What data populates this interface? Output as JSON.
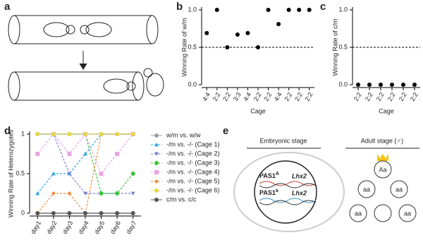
{
  "panel_labels": [
    "a",
    "b",
    "c",
    "d",
    "e"
  ],
  "chart_data": [
    {
      "type": "dot",
      "y_label": "Winning Rate of w/m",
      "x_label": "Cage",
      "categories": [
        "4:4",
        "2:2",
        "2:2",
        "3:3",
        "4:4",
        "2:2",
        "2:2",
        "4:4",
        "2:2",
        "2:2",
        "2:2"
      ],
      "values": [
        0.69,
        1.0,
        0.5,
        0.67,
        0.69,
        0.5,
        1.0,
        0.81,
        1.0,
        1.0,
        1.0
      ],
      "color": "#000000",
      "ylim": [
        0,
        1.0
      ],
      "yticks": [
        {
          "value": 0,
          "label": "0.0"
        },
        {
          "value": 0.5,
          "label": "0.5"
        },
        {
          "value": 1.0,
          "label": "1.0"
        }
      ],
      "hline": 0.5
    },
    {
      "type": "dot",
      "y_label": "Winning Rate of c/m",
      "x_label": "Cage",
      "categories": [
        "2:2",
        "2:2",
        "2:2",
        "2:2",
        "2:2",
        "2:2"
      ],
      "values": [
        0,
        0,
        0,
        0,
        0,
        0
      ],
      "color": "#000000",
      "ylim": [
        0,
        1.0
      ],
      "yticks": [
        {
          "value": 0,
          "label": "0.0"
        },
        {
          "value": 0.5,
          "label": "0.5"
        },
        {
          "value": 1.0,
          "label": "1.0"
        }
      ],
      "hline": 0.5
    },
    {
      "type": "line",
      "y_label": "Winning Rate of Heterozygotes",
      "categories": [
        "day1",
        "day2",
        "day3",
        "day4",
        "day5",
        "day6",
        "day7"
      ],
      "ylim": [
        0,
        1
      ],
      "yticks": [
        0,
        0.5,
        1
      ],
      "legend": "right",
      "series": [
        {
          "name": "w/m vs. w/w",
          "color": "#9e9e9e",
          "marker": "circle",
          "dash": false,
          "values": [
            1,
            1,
            1,
            1,
            1,
            1,
            1
          ]
        },
        {
          "name": "-/m vs. -/- (Cage 1)",
          "color": "#29a8e0",
          "marker": "triangle",
          "dash": true,
          "values": [
            0.25,
            0.5,
            0.5,
            0.75,
            1,
            1,
            1
          ]
        },
        {
          "name": "-/m vs. -/- (Cage 2)",
          "color": "#7b7fd6",
          "marker": "triangle-down",
          "dash": true,
          "values": [
            1,
            1,
            0.5,
            0.25,
            0.25,
            0.25,
            0.25
          ]
        },
        {
          "name": "-/m vs. -/- (Cage 3)",
          "color": "#3cc43c",
          "marker": "circle",
          "dash": true,
          "values": [
            1,
            1,
            1,
            1,
            0.25,
            0.25,
            0.5
          ]
        },
        {
          "name": "-/m vs. -/- (Cage 4)",
          "color": "#e9a3e6",
          "marker": "square",
          "dash": true,
          "values": [
            0.75,
            1,
            0.75,
            1,
            0.5,
            0.75,
            1
          ]
        },
        {
          "name": "-/m vs. -/- (Cage 5)",
          "color": "#ef8a3a",
          "marker": "diamond",
          "dash": true,
          "values": [
            0,
            0.25,
            0.25,
            0,
            1,
            1,
            1
          ]
        },
        {
          "name": "-/m vs. -/- (Cage 6)",
          "color": "#e8d84a",
          "marker": "circle",
          "dash": true,
          "values": [
            1,
            1,
            1,
            1,
            1,
            1,
            1
          ]
        },
        {
          "name": "c/m vs. c/c",
          "color": "#555555",
          "marker": "circle",
          "dash": false,
          "values": [
            0,
            0,
            0,
            0,
            0,
            0,
            0
          ]
        }
      ]
    }
  ],
  "diagram_e": {
    "left_title": "Embryonic stage",
    "right_title": "Adult stage (♂)",
    "allele_upper": {
      "gene": "PAS1",
      "allele": "A",
      "target": "Lhx2"
    },
    "allele_lower": {
      "gene": "PAS1",
      "allele": "a",
      "target": "Lhx2"
    },
    "adult_mice": [
      "Aa",
      "aa",
      "aa",
      "aa",
      "aa"
    ]
  }
}
